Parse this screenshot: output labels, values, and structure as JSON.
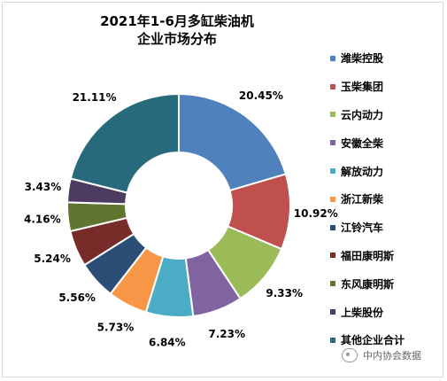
{
  "chart_data": {
    "type": "pie",
    "title": "2021年1-6月多缸柴油机 企业市场分布",
    "title_lines": [
      "2021年1-6月多缸柴油机",
      "企业市场分布"
    ],
    "donut": true,
    "legend_position": "right",
    "slices": [
      {
        "name": "潍柴控股",
        "value": 20.45,
        "label": "20.45%",
        "color": "#4f81bd"
      },
      {
        "name": "玉柴集团",
        "value": 10.92,
        "label": "10.92%",
        "color": "#c0504d"
      },
      {
        "name": "云内动力",
        "value": 9.33,
        "label": "9.33%",
        "color": "#9bbb59"
      },
      {
        "name": "安徽全柴",
        "value": 7.23,
        "label": "7.23%",
        "color": "#8064a2"
      },
      {
        "name": "解放动力",
        "value": 6.84,
        "label": "6.84%",
        "color": "#4bacc6"
      },
      {
        "name": "浙江新柴",
        "value": 5.73,
        "label": "5.73%",
        "color": "#f79646"
      },
      {
        "name": "江铃汽车",
        "value": 5.56,
        "label": "5.56%",
        "color": "#2c4d75"
      },
      {
        "name": "福田康明斯",
        "value": 5.24,
        "label": "5.24%",
        "color": "#772c2a"
      },
      {
        "name": "东风康明斯",
        "value": 4.16,
        "label": "4.16%",
        "color": "#5f7530"
      },
      {
        "name": "上柴股份",
        "value": 3.43,
        "label": "3.43%",
        "color": "#4d3b62"
      },
      {
        "name": "其他企业合计",
        "value": 21.11,
        "label": "21.11%",
        "color": "#276a7c"
      }
    ]
  },
  "watermark": {
    "text": "中内协会数据",
    "icon": "wechat-icon"
  }
}
